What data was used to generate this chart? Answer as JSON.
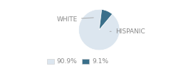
{
  "labels": [
    "WHITE",
    "HISPANIC"
  ],
  "values": [
    90.9,
    9.1
  ],
  "colors": [
    "#dce6ef",
    "#3a6f8a"
  ],
  "legend_labels": [
    "90.9%",
    "9.1%"
  ],
  "startangle": 83,
  "figsize": [
    2.4,
    1.0
  ],
  "dpi": 100,
  "font_size": 6.5,
  "label_font_size": 6.5,
  "bg_color": "#ffffff",
  "text_color": "#888888"
}
